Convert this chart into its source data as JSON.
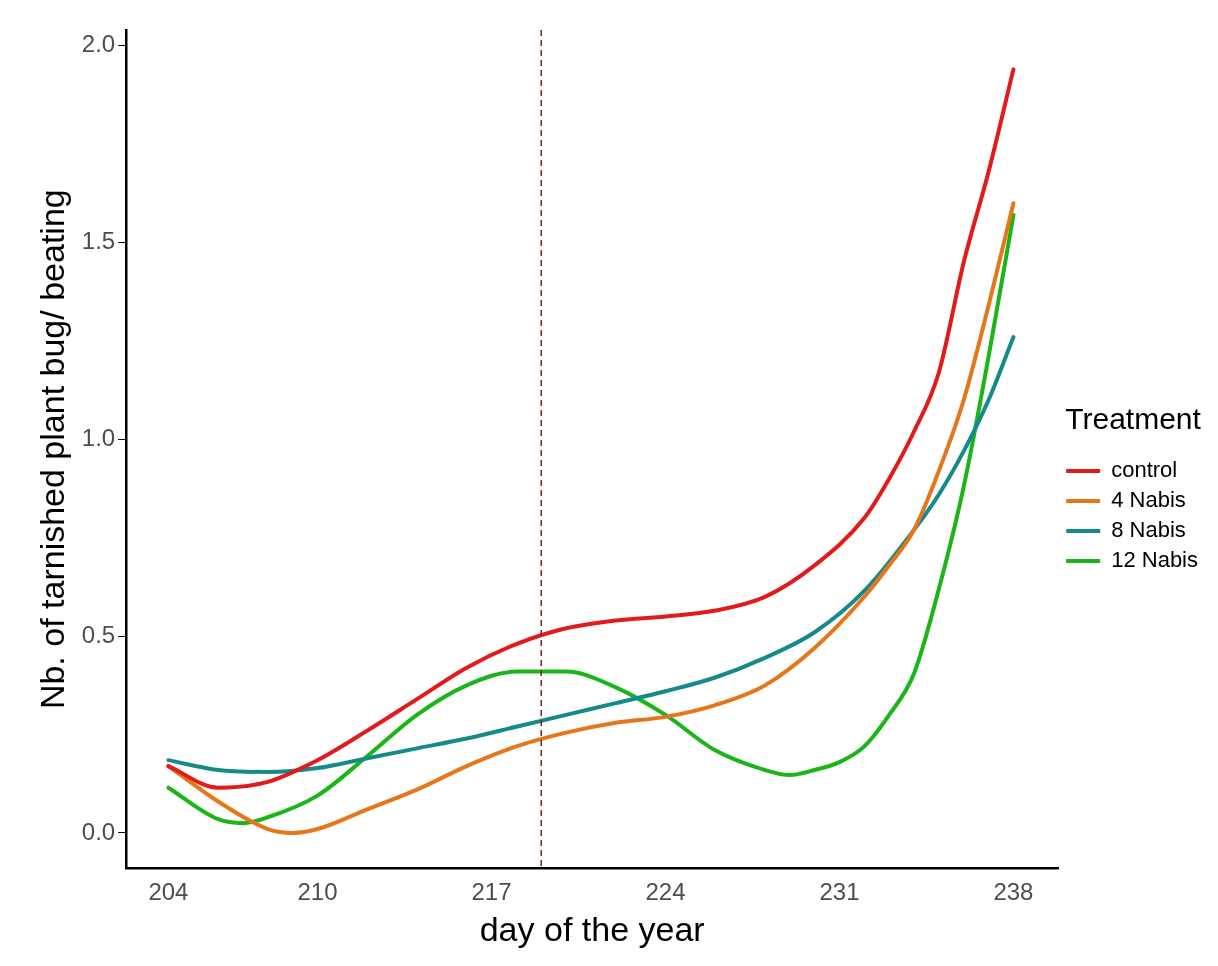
{
  "chart_data": {
    "type": "line",
    "xlabel": "day of the year",
    "ylabel": "Nb. of tarnished plant bug/ beating",
    "legend_title": "Treatment",
    "legend": "right",
    "grid": false,
    "marker": "none",
    "line_style": "solid",
    "xlim": [
      202.3,
      239.8
    ],
    "xticks": [
      204,
      210,
      217,
      224,
      231,
      238
    ],
    "ylim": [
      -0.09,
      2.04
    ],
    "yticks": [
      {
        "value": 0,
        "label": "0.0"
      },
      {
        "value": 0.5,
        "label": "0.5"
      },
      {
        "value": 1,
        "label": "1.0"
      },
      {
        "value": 1.5,
        "label": "1.5"
      },
      {
        "value": 2,
        "label": "2.0"
      }
    ],
    "ref_lines": [
      {
        "axis": "x",
        "value": 219,
        "color": "#7f1d1d",
        "line_style": "dashed"
      }
    ],
    "series": [
      {
        "name": "control",
        "color": "#e31a1c",
        "x": [
          204,
          206,
          208,
          210,
          212,
          214,
          216,
          218,
          220,
          222,
          224,
          226,
          228,
          230,
          232,
          233,
          234,
          235,
          236,
          237,
          238
        ],
        "values": [
          0.17,
          0.115,
          0.13,
          0.185,
          0.26,
          0.34,
          0.42,
          0.48,
          0.52,
          0.54,
          0.55,
          0.565,
          0.6,
          0.68,
          0.8,
          0.9,
          1.02,
          1.17,
          1.45,
          1.68,
          1.94
        ]
      },
      {
        "name": "4 Nabis",
        "color": "#e6761a",
        "x": [
          204,
          206,
          208,
          209,
          210,
          212,
          214,
          216,
          218,
          220,
          222,
          224,
          226,
          228,
          230,
          232,
          233,
          234,
          235,
          236,
          237,
          238
        ],
        "values": [
          0.17,
          0.08,
          0.01,
          0.0,
          0.01,
          0.06,
          0.11,
          0.17,
          0.22,
          0.255,
          0.28,
          0.295,
          0.325,
          0.375,
          0.47,
          0.6,
          0.68,
          0.77,
          0.92,
          1.1,
          1.34,
          1.6
        ]
      },
      {
        "name": "8 Nabis",
        "color": "#168a8a",
        "x": [
          204,
          206,
          208,
          210,
          212,
          214,
          216,
          218,
          220,
          222,
          224,
          226,
          228,
          230,
          232,
          234,
          235,
          236,
          237,
          238
        ],
        "values": [
          0.185,
          0.16,
          0.155,
          0.165,
          0.19,
          0.215,
          0.24,
          0.27,
          0.3,
          0.33,
          0.36,
          0.395,
          0.445,
          0.51,
          0.615,
          0.77,
          0.86,
          0.97,
          1.1,
          1.26
        ]
      },
      {
        "name": "12 Nabis",
        "color": "#19b519",
        "x": [
          204,
          206,
          207,
          208,
          210,
          212,
          214,
          216,
          218,
          220,
          222,
          224,
          226,
          228,
          229,
          230,
          231,
          232,
          233,
          234,
          235,
          236,
          237,
          238
        ],
        "values": [
          0.115,
          0.035,
          0.025,
          0.04,
          0.095,
          0.195,
          0.3,
          0.375,
          0.41,
          0.41,
          0.37,
          0.3,
          0.21,
          0.16,
          0.147,
          0.16,
          0.18,
          0.22,
          0.3,
          0.405,
          0.62,
          0.88,
          1.21,
          1.57
        ]
      }
    ]
  }
}
